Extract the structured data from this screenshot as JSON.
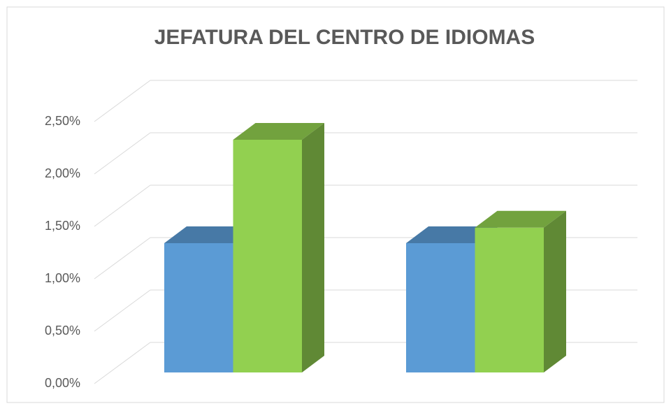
{
  "chart_data": {
    "type": "bar3d",
    "title": "JEFATURA DEL CENTRO DE IDIOMAS",
    "categories": [
      null,
      null
    ],
    "series": [
      {
        "color": "#5b9bd5",
        "values": [
          1.25,
          1.25
        ]
      },
      {
        "color": "#92d050",
        "values": [
          2.25,
          1.4
        ]
      }
    ],
    "ylim": [
      0,
      2.5
    ],
    "yticks": [
      {
        "value": 0,
        "label": "0,00%"
      },
      {
        "value": 0.5,
        "label": "0,50%"
      },
      {
        "value": 1,
        "label": "1,00%"
      },
      {
        "value": 1.5,
        "label": "1,50%"
      },
      {
        "value": 2,
        "label": "2,00%"
      },
      {
        "value": 2.5,
        "label": "2,50%"
      }
    ],
    "grid": true
  }
}
